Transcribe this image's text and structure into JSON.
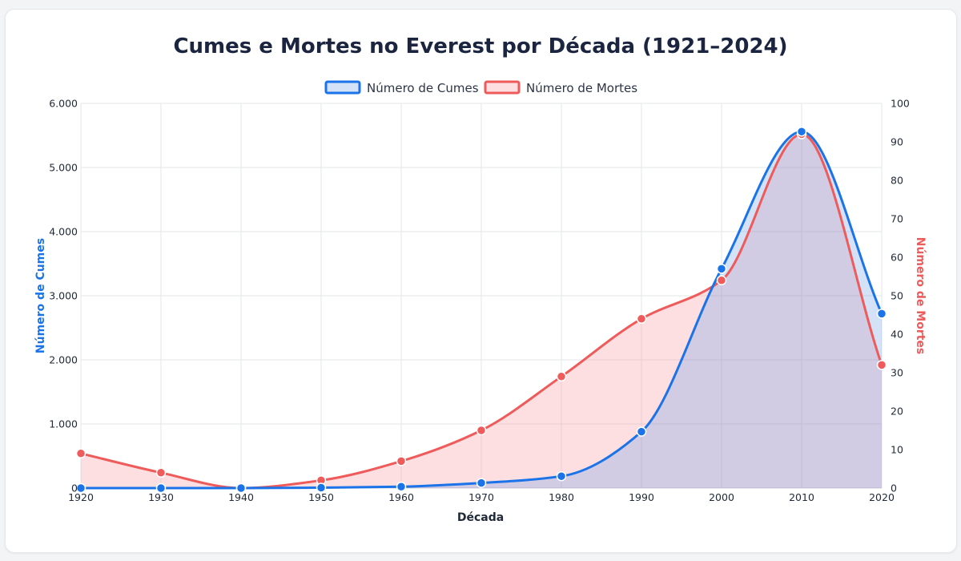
{
  "chart_data": {
    "type": "line",
    "title": "Cumes e Mortes no Everest por Década (1921–2024)",
    "xlabel": "Década",
    "ylabel_left": "Número de Cumes",
    "ylabel_right": "Número de Mortes",
    "categories": [
      "1920",
      "1930",
      "1940",
      "1950",
      "1960",
      "1970",
      "1980",
      "1990",
      "2000",
      "2010",
      "2020"
    ],
    "y_left_lim": [
      0,
      6000
    ],
    "y_left_ticks": [
      "0",
      "1.000",
      "2.000",
      "3.000",
      "4.000",
      "5.000",
      "6.000"
    ],
    "y_right_lim": [
      0,
      100
    ],
    "y_right_ticks": [
      "0",
      "10",
      "20",
      "30",
      "40",
      "50",
      "60",
      "70",
      "80",
      "90",
      "100"
    ],
    "grid": true,
    "legend_position": "top-center",
    "series": [
      {
        "name": "Número de Cumes",
        "axis": "left",
        "color": "#1a73e8",
        "fill": "rgba(110,160,230,0.30)",
        "values": [
          0,
          0,
          0,
          6,
          22,
          80,
          185,
          880,
          3420,
          5560,
          2720
        ]
      },
      {
        "name": "Número de Mortes",
        "axis": "right",
        "color": "#ef5a5a",
        "fill": "rgba(248,140,150,0.28)",
        "values": [
          9,
          4,
          0,
          2,
          7,
          15,
          29,
          44,
          54,
          92,
          32
        ]
      }
    ]
  }
}
